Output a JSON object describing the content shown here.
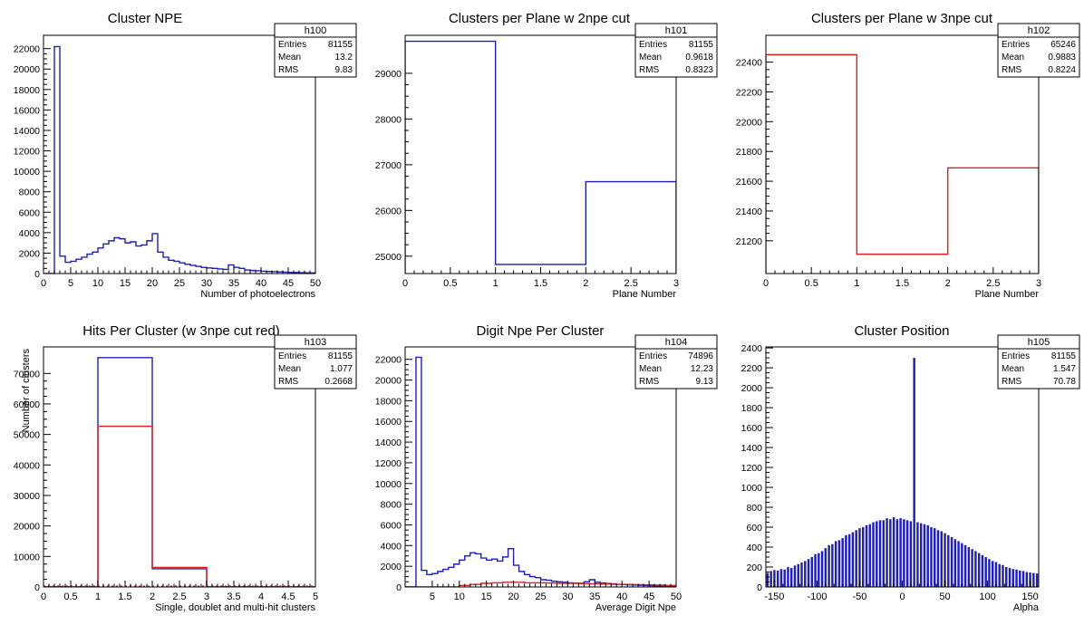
{
  "chart_data": [
    {
      "type": "histogram",
      "name": "h100",
      "title": "Cluster NPE",
      "xlabel": "Number of photoelectrons",
      "ylabel": "",
      "xlim": [
        0,
        50
      ],
      "ylim": [
        0,
        23300
      ],
      "xticks": [
        0,
        5,
        10,
        15,
        20,
        25,
        30,
        35,
        40,
        45,
        50
      ],
      "yticks": [
        0,
        2000,
        4000,
        6000,
        8000,
        10000,
        12000,
        14000,
        16000,
        18000,
        20000,
        22000
      ],
      "stats": {
        "name": "h100",
        "rows": [
          [
            "Entries",
            "81155"
          ],
          [
            "Mean",
            "13.2"
          ],
          [
            "RMS",
            "9.83"
          ]
        ]
      },
      "series": [
        {
          "color": "#1f1fb4",
          "edges": [
            0,
            1,
            2,
            3,
            4,
            5,
            6,
            7,
            8,
            9,
            10,
            11,
            12,
            13,
            14,
            15,
            16,
            17,
            18,
            19,
            20,
            21,
            22,
            23,
            24,
            25,
            26,
            27,
            28,
            29,
            30,
            31,
            32,
            33,
            34,
            35,
            36,
            37,
            38,
            39,
            40,
            41,
            42,
            43,
            44,
            45,
            46,
            47,
            48,
            49,
            50
          ],
          "values": [
            0,
            0,
            22200,
            1700,
            1100,
            1200,
            1400,
            1600,
            1900,
            2100,
            2500,
            2900,
            3200,
            3500,
            3400,
            3000,
            3100,
            2700,
            2800,
            3200,
            3900,
            2100,
            1600,
            1300,
            1200,
            1050,
            900,
            800,
            700,
            600,
            550,
            500,
            450,
            400,
            850,
            600,
            500,
            350,
            300,
            270,
            230,
            200,
            180,
            160,
            140,
            120,
            100,
            80,
            70,
            60
          ]
        }
      ]
    },
    {
      "type": "histogram",
      "name": "h101",
      "title": "Clusters per Plane w 2npe cut",
      "xlabel": "Plane Number",
      "ylabel": "",
      "xlim": [
        0,
        3
      ],
      "ylim": [
        24620,
        29830
      ],
      "xticks": [
        0,
        0.5,
        1,
        1.5,
        2,
        2.5,
        3
      ],
      "yticks": [
        25000,
        26000,
        27000,
        28000,
        29000
      ],
      "stats": {
        "name": "h101",
        "rows": [
          [
            "Entries",
            "81155"
          ],
          [
            "Mean",
            "0.9618"
          ],
          [
            "RMS",
            "0.8323"
          ]
        ]
      },
      "series": [
        {
          "color": "#1f1fb4",
          "edges": [
            0,
            1,
            2,
            3
          ],
          "values": [
            29700,
            24820,
            26630
          ]
        }
      ]
    },
    {
      "type": "histogram",
      "name": "h102",
      "title": "Clusters per Plane w 3npe cut",
      "xlabel": "Plane Number",
      "ylabel": "",
      "xlim": [
        0,
        3
      ],
      "ylim": [
        20980,
        22580
      ],
      "xticks": [
        0,
        0.5,
        1,
        1.5,
        2,
        2.5,
        3
      ],
      "yticks": [
        21200,
        21400,
        21600,
        21800,
        22000,
        22200,
        22400
      ],
      "stats": {
        "name": "h102",
        "rows": [
          [
            "Entries",
            "65246"
          ],
          [
            "Mean",
            "0.9883"
          ],
          [
            "RMS",
            "0.8224"
          ]
        ]
      },
      "series": [
        {
          "color": "#dd1f1f",
          "edges": [
            0,
            1,
            2,
            3
          ],
          "values": [
            22450,
            21110,
            21690
          ]
        }
      ]
    },
    {
      "type": "histogram",
      "name": "h103",
      "title": "Hits Per Cluster (w 3npe cut red)",
      "xlabel": "Single, doublet and multi-hit clusters",
      "ylabel": "Number of clusters",
      "xlim": [
        0,
        5
      ],
      "ylim": [
        0,
        78700
      ],
      "xticks": [
        0,
        0.5,
        1,
        1.5,
        2,
        2.5,
        3,
        3.5,
        4,
        4.5,
        5
      ],
      "yticks": [
        0,
        10000,
        20000,
        30000,
        40000,
        50000,
        60000,
        70000
      ],
      "stats": {
        "name": "h103",
        "rows": [
          [
            "Entries",
            "81155"
          ],
          [
            "Mean",
            "1.077"
          ],
          [
            "RMS",
            "0.2668"
          ]
        ]
      },
      "series": [
        {
          "color": "#1f1fb4",
          "edges": [
            0,
            1,
            2,
            3,
            5
          ],
          "values": [
            0,
            75200,
            5950,
            0
          ]
        },
        {
          "color": "#dd1f1f",
          "edges": [
            0,
            1,
            2,
            3,
            5
          ],
          "values": [
            0,
            52700,
            6400,
            0
          ]
        }
      ]
    },
    {
      "type": "histogram",
      "name": "h104",
      "title": "Digit Npe Per Cluster",
      "xlabel": "Average Digit Npe",
      "ylabel": "",
      "xlim": [
        0,
        50
      ],
      "ylim": [
        0,
        23200
      ],
      "xticks": [
        5,
        10,
        15,
        20,
        25,
        30,
        35,
        40,
        45,
        50
      ],
      "yticks": [
        0,
        2000,
        4000,
        6000,
        8000,
        10000,
        12000,
        14000,
        16000,
        18000,
        20000,
        22000
      ],
      "stats": {
        "name": "h104",
        "rows": [
          [
            "Entries",
            "74896"
          ],
          [
            "Mean",
            "12.23"
          ],
          [
            "RMS",
            "9.13"
          ]
        ]
      },
      "series": [
        {
          "color": "#1f1fb4",
          "edges": [
            0,
            1,
            2,
            3,
            4,
            5,
            6,
            7,
            8,
            9,
            10,
            11,
            12,
            13,
            14,
            15,
            16,
            17,
            18,
            19,
            20,
            21,
            22,
            23,
            24,
            25,
            26,
            27,
            28,
            29,
            30,
            31,
            32,
            33,
            34,
            35,
            36,
            37,
            38,
            39,
            40,
            41,
            42,
            43,
            44,
            45,
            46,
            47,
            48,
            49,
            50
          ],
          "values": [
            0,
            0,
            22200,
            1600,
            1200,
            1300,
            1500,
            1700,
            1900,
            2200,
            2600,
            3000,
            3300,
            3200,
            2800,
            2600,
            2700,
            2500,
            2900,
            3700,
            2100,
            1500,
            1200,
            1000,
            900,
            700,
            650,
            550,
            500,
            450,
            400,
            380,
            350,
            500,
            700,
            450,
            380,
            330,
            300,
            250,
            220,
            200,
            180,
            160,
            140,
            120,
            100,
            90,
            80,
            70
          ]
        },
        {
          "color": "#dd1f1f",
          "edges": [
            0,
            2,
            4,
            6,
            8,
            10,
            12,
            14,
            16,
            18,
            20,
            22,
            24,
            26,
            28,
            30,
            32,
            34,
            36,
            38,
            40,
            42,
            44,
            46,
            48,
            50
          ],
          "values": [
            0,
            0,
            0,
            0,
            0,
            150,
            250,
            350,
            400,
            450,
            450,
            400,
            400,
            380,
            350,
            350,
            320,
            300,
            280,
            260,
            240,
            220,
            200,
            180,
            150
          ]
        }
      ]
    },
    {
      "type": "histogram",
      "name": "h105",
      "title": "Cluster Position",
      "xlabel": "Alpha",
      "ylabel": "",
      "xlim": [
        -160,
        160
      ],
      "ylim": [
        0,
        2410
      ],
      "xticks": [
        -150,
        -100,
        -50,
        0,
        50,
        100,
        150
      ],
      "yticks": [
        0,
        200,
        400,
        600,
        800,
        1000,
        1200,
        1400,
        1600,
        1800,
        2000,
        2200,
        2400
      ],
      "stats": {
        "name": "h105",
        "rows": [
          [
            "Entries",
            "81155"
          ],
          [
            "Mean",
            "1.547"
          ],
          [
            "RMS",
            "70.78"
          ]
        ]
      },
      "series": [
        {
          "color": "#1f1fb4",
          "dense": true,
          "x": [
            -158,
            -154,
            -150,
            -146,
            -142,
            -138,
            -134,
            -130,
            -126,
            -122,
            -118,
            -114,
            -110,
            -106,
            -102,
            -98,
            -94,
            -90,
            -86,
            -82,
            -78,
            -74,
            -70,
            -66,
            -62,
            -58,
            -54,
            -50,
            -46,
            -42,
            -38,
            -34,
            -30,
            -26,
            -22,
            -18,
            -14,
            -10,
            -6,
            -2,
            2,
            6,
            10,
            14,
            18,
            22,
            26,
            30,
            34,
            38,
            42,
            46,
            50,
            54,
            58,
            62,
            66,
            70,
            74,
            78,
            82,
            86,
            90,
            94,
            98,
            102,
            106,
            110,
            114,
            118,
            122,
            126,
            130,
            134,
            138,
            142,
            146,
            150,
            154,
            158
          ],
          "values": [
            140,
            160,
            170,
            165,
            180,
            175,
            200,
            190,
            215,
            230,
            245,
            260,
            280,
            300,
            330,
            340,
            360,
            390,
            420,
            430,
            460,
            470,
            490,
            520,
            530,
            550,
            570,
            590,
            600,
            620,
            630,
            650,
            660,
            670,
            670,
            690,
            680,
            700,
            680,
            690,
            680,
            670,
            660,
            2300,
            650,
            640,
            630,
            620,
            600,
            590,
            570,
            560,
            540,
            520,
            500,
            480,
            460,
            440,
            420,
            400,
            380,
            360,
            340,
            320,
            300,
            280,
            260,
            250,
            230,
            220,
            200,
            190,
            180,
            175,
            165,
            160,
            150,
            145,
            140,
            135
          ]
        }
      ]
    }
  ]
}
